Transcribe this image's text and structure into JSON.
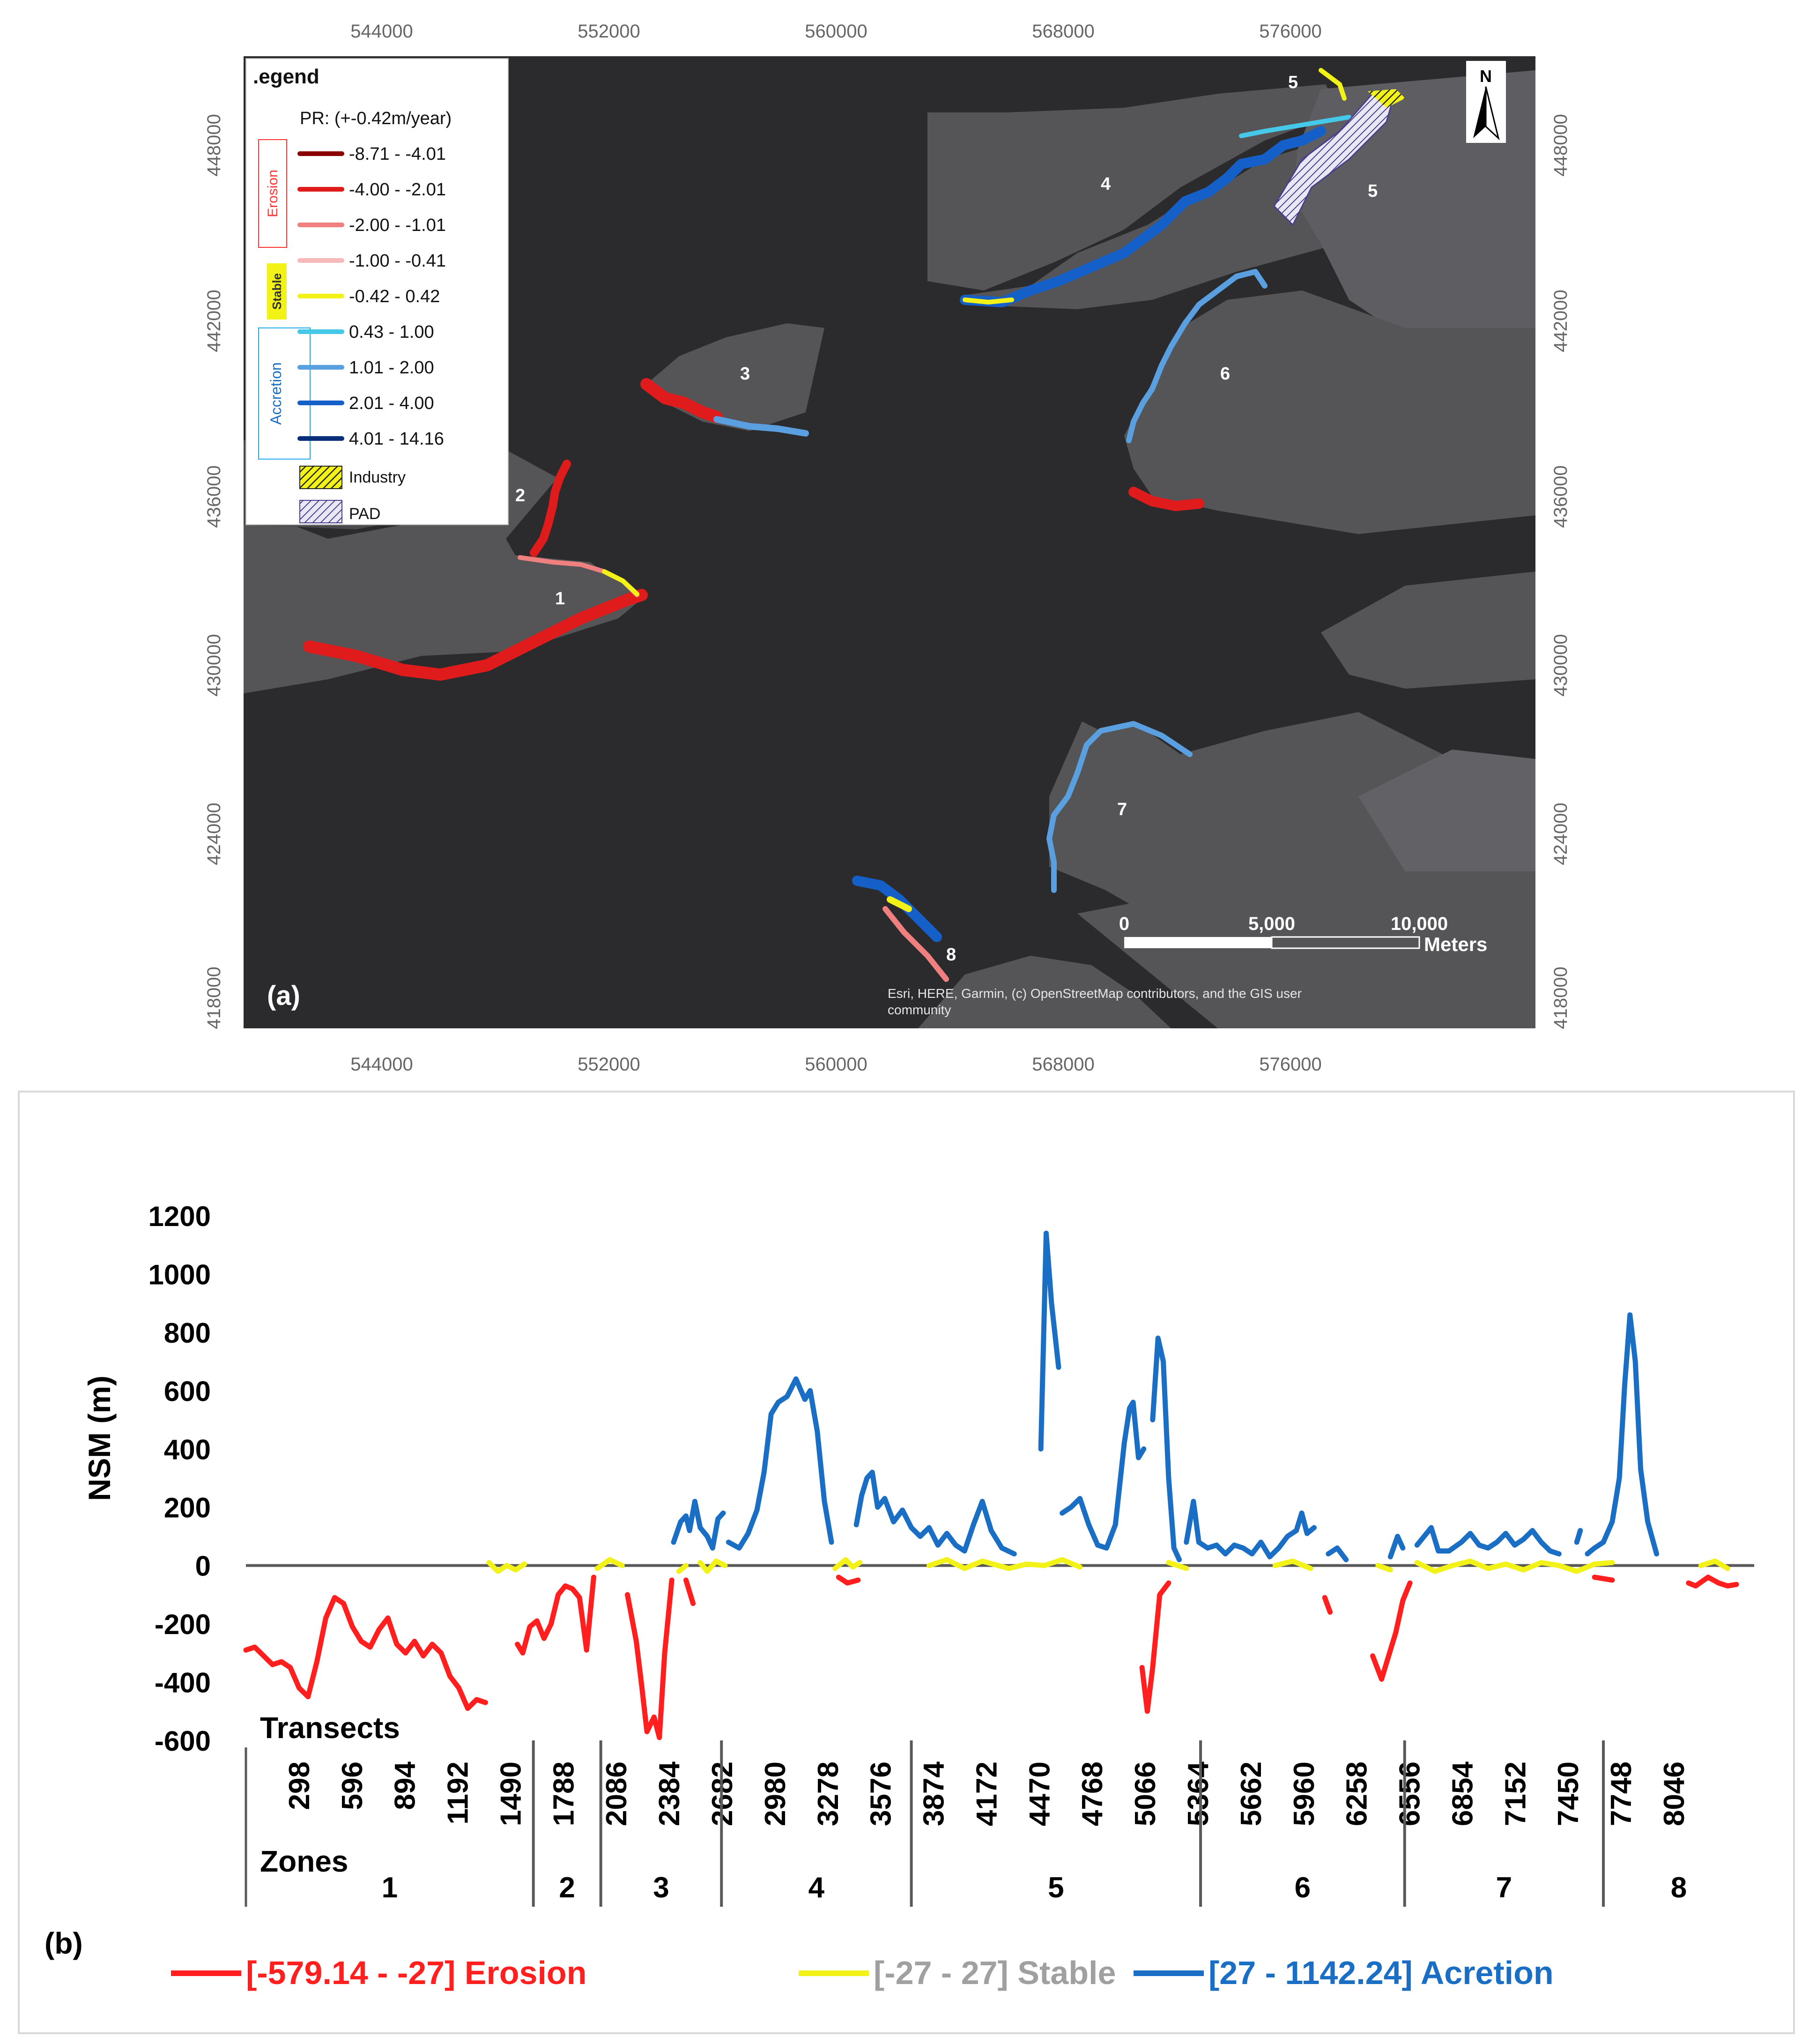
{
  "colors": {
    "erosion": "#ff1f1f",
    "stable": "#f2f218",
    "accretion": "#1a6fc4",
    "dark_red": "#8b0000",
    "water": "#2b2b2d",
    "land": "#555558",
    "stable_text": "#a0a0a0"
  },
  "map": {
    "panel_label": "(a)",
    "x_ticks": [
      "544000",
      "552000",
      "560000",
      "568000",
      "576000"
    ],
    "y_ticks": [
      "448000",
      "442000",
      "436000",
      "430000",
      "424000",
      "418000"
    ],
    "legend": {
      "title": ".egend",
      "subtitle": "PR: (+-0.42m/year)",
      "group_erosion": "Erosion",
      "group_stable": "Stable",
      "group_accretion": "Accretion",
      "classes": [
        {
          "label": "-8.71 - -4.01",
          "color": "#8b0000"
        },
        {
          "label": "-4.00 - -2.01",
          "color": "#e01b1b"
        },
        {
          "label": "-2.00 - -1.01",
          "color": "#f07f7f"
        },
        {
          "label": "-1.00 - -0.41",
          "color": "#f7b9b9"
        },
        {
          "label": "-0.42 - 0.42",
          "color": "#f2f218"
        },
        {
          "label": "0.43 - 1.00",
          "color": "#46c8e8"
        },
        {
          "label": "1.01 - 2.00",
          "color": "#5aa0e0"
        },
        {
          "label": "2.01 - 4.00",
          "color": "#1560c8"
        },
        {
          "label": "4.01 - 14.16",
          "color": "#0a2f7a"
        }
      ],
      "industry": "Industry",
      "pad": "PAD"
    },
    "zone_labels": [
      "1",
      "2",
      "3",
      "4",
      "5",
      "5",
      "6",
      "7",
      "8"
    ],
    "north": "N",
    "scale": {
      "zero": "0",
      "mid": "5,000",
      "max": "10,000",
      "unit": "Meters"
    },
    "credit_line1": "Esri, HERE, Garmin, (c) OpenStreetMap contributors, and the GIS user",
    "credit_line2": "community"
  },
  "chart_data": {
    "type": "line",
    "panel_label": "(b)",
    "ylabel": "NSM (m)",
    "xlabel_transects": "Transects",
    "xlabel_zones": "Zones",
    "ylim": [
      -600,
      1200
    ],
    "yticks": [
      1200,
      1000,
      800,
      600,
      400,
      200,
      0,
      -200,
      -400,
      -600
    ],
    "xlim": [
      0,
      8500
    ],
    "xticks": [
      298,
      596,
      894,
      1192,
      1490,
      1788,
      2086,
      2384,
      2682,
      2980,
      3278,
      3576,
      3874,
      4172,
      4470,
      4768,
      5066,
      5364,
      5662,
      5960,
      6258,
      6556,
      6854,
      7152,
      7450,
      7748,
      8046
    ],
    "zones": [
      {
        "name": "1",
        "start": 0,
        "end": 1620
      },
      {
        "name": "2",
        "start": 1620,
        "end": 2000
      },
      {
        "name": "3",
        "start": 2000,
        "end": 2680
      },
      {
        "name": "4",
        "start": 2680,
        "end": 3750
      },
      {
        "name": "5",
        "start": 3750,
        "end": 5380
      },
      {
        "name": "6",
        "start": 5380,
        "end": 6530
      },
      {
        "name": "7",
        "start": 6530,
        "end": 7650
      },
      {
        "name": "8",
        "start": 7650,
        "end": 8500
      }
    ],
    "legend": [
      {
        "label": "[-579.14 - -27] Erosion",
        "key": "erosion"
      },
      {
        "label": "[-27 - 27] Stable",
        "key": "stable"
      },
      {
        "label": "[27 - 1142.24] Acretion",
        "key": "accretion"
      }
    ],
    "series": [
      {
        "name": "Erosion",
        "key": "erosion",
        "points": [
          [
            0,
            -290
          ],
          [
            50,
            -280
          ],
          [
            100,
            -310
          ],
          [
            150,
            -340
          ],
          [
            200,
            -330
          ],
          [
            250,
            -350
          ],
          [
            300,
            -420
          ],
          [
            350,
            -450
          ],
          [
            400,
            -330
          ],
          [
            450,
            -180
          ],
          [
            500,
            -110
          ],
          [
            550,
            -130
          ],
          [
            600,
            -210
          ],
          [
            650,
            -260
          ],
          [
            700,
            -280
          ],
          [
            750,
            -220
          ],
          [
            800,
            -180
          ],
          [
            850,
            -270
          ],
          [
            900,
            -300
          ],
          [
            950,
            -260
          ],
          [
            1000,
            -310
          ],
          [
            1050,
            -270
          ],
          [
            1100,
            -300
          ],
          [
            1150,
            -380
          ],
          [
            1200,
            -420
          ],
          [
            1250,
            -490
          ],
          [
            1300,
            -460
          ],
          [
            1350,
            -470
          ],
          null,
          [
            1530,
            -270
          ],
          [
            1560,
            -300
          ],
          [
            1600,
            -210
          ],
          [
            1640,
            -190
          ],
          [
            1680,
            -250
          ],
          [
            1720,
            -200
          ],
          [
            1760,
            -100
          ],
          [
            1800,
            -70
          ],
          [
            1840,
            -80
          ],
          [
            1880,
            -110
          ],
          [
            1920,
            -290
          ],
          [
            1960,
            -40
          ],
          null,
          [
            2150,
            -100
          ],
          [
            2200,
            -260
          ],
          [
            2230,
            -410
          ],
          [
            2260,
            -570
          ],
          [
            2300,
            -520
          ],
          [
            2330,
            -590
          ],
          [
            2360,
            -300
          ],
          [
            2400,
            -50
          ],
          null,
          [
            2480,
            -50
          ],
          [
            2520,
            -130
          ],
          null,
          [
            3340,
            -40
          ],
          [
            3390,
            -60
          ],
          [
            3450,
            -50
          ],
          null,
          [
            5050,
            -350
          ],
          [
            5080,
            -500
          ],
          [
            5110,
            -350
          ],
          [
            5150,
            -100
          ],
          [
            5200,
            -60
          ],
          null,
          [
            6080,
            -110
          ],
          [
            6110,
            -160
          ],
          null,
          [
            6350,
            -310
          ],
          [
            6400,
            -390
          ],
          [
            6440,
            -310
          ],
          [
            6480,
            -230
          ],
          [
            6520,
            -120
          ],
          [
            6560,
            -60
          ],
          null,
          [
            7600,
            -40
          ],
          [
            7700,
            -50
          ],
          null,
          [
            8130,
            -60
          ],
          [
            8170,
            -70
          ],
          [
            8240,
            -40
          ],
          [
            8300,
            -60
          ],
          [
            8350,
            -70
          ],
          [
            8400,
            -65
          ]
        ]
      },
      {
        "name": "Stable",
        "key": "stable",
        "points": [
          [
            1370,
            10
          ],
          [
            1420,
            -20
          ],
          [
            1470,
            0
          ],
          [
            1520,
            -15
          ],
          [
            1570,
            5
          ],
          null,
          [
            1980,
            -10
          ],
          [
            2050,
            20
          ],
          [
            2120,
            0
          ],
          null,
          [
            2440,
            -20
          ],
          [
            2480,
            0
          ],
          null,
          [
            2560,
            10
          ],
          [
            2600,
            -20
          ],
          [
            2650,
            15
          ],
          [
            2700,
            0
          ],
          null,
          [
            3320,
            -10
          ],
          [
            3380,
            20
          ],
          [
            3420,
            -5
          ],
          [
            3460,
            10
          ],
          null,
          [
            3850,
            0
          ],
          [
            3950,
            20
          ],
          [
            4050,
            -10
          ],
          [
            4150,
            15
          ],
          [
            4300,
            -10
          ],
          [
            4400,
            5
          ],
          [
            4500,
            0
          ],
          [
            4600,
            20
          ],
          [
            4700,
            -5
          ],
          null,
          [
            5200,
            10
          ],
          [
            5300,
            -10
          ],
          null,
          [
            5800,
            0
          ],
          [
            5900,
            15
          ],
          [
            6000,
            -10
          ],
          null,
          [
            6380,
            0
          ],
          [
            6450,
            -15
          ],
          null,
          [
            6600,
            10
          ],
          [
            6700,
            -20
          ],
          [
            6800,
            0
          ],
          [
            6900,
            15
          ],
          [
            7000,
            -10
          ],
          [
            7100,
            5
          ],
          [
            7200,
            -15
          ],
          [
            7300,
            10
          ],
          [
            7400,
            0
          ],
          [
            7500,
            -20
          ],
          [
            7600,
            5
          ],
          [
            7700,
            10
          ],
          null,
          [
            8200,
            0
          ],
          [
            8280,
            15
          ],
          [
            8350,
            -10
          ]
        ]
      },
      {
        "name": "Accretion",
        "key": "accretion",
        "points": [
          [
            2410,
            80
          ],
          [
            2450,
            150
          ],
          [
            2480,
            170
          ],
          [
            2500,
            120
          ],
          [
            2530,
            220
          ],
          [
            2560,
            130
          ],
          [
            2600,
            100
          ],
          [
            2630,
            60
          ],
          [
            2660,
            160
          ],
          [
            2690,
            180
          ],
          null,
          [
            2720,
            80
          ],
          [
            2780,
            60
          ],
          [
            2830,
            110
          ],
          [
            2880,
            190
          ],
          [
            2920,
            320
          ],
          [
            2960,
            520
          ],
          [
            3000,
            560
          ],
          [
            3050,
            580
          ],
          [
            3100,
            640
          ],
          [
            3150,
            570
          ],
          [
            3180,
            600
          ],
          [
            3220,
            460
          ],
          [
            3260,
            220
          ],
          [
            3300,
            80
          ],
          null,
          [
            3440,
            140
          ],
          [
            3470,
            240
          ],
          [
            3500,
            300
          ],
          [
            3530,
            320
          ],
          [
            3560,
            200
          ],
          [
            3600,
            230
          ],
          [
            3650,
            150
          ],
          [
            3700,
            190
          ],
          [
            3750,
            130
          ],
          [
            3800,
            100
          ],
          [
            3850,
            130
          ],
          [
            3900,
            70
          ],
          [
            3950,
            110
          ],
          [
            4000,
            70
          ],
          [
            4050,
            50
          ],
          [
            4100,
            140
          ],
          [
            4150,
            220
          ],
          [
            4200,
            120
          ],
          [
            4260,
            60
          ],
          [
            4330,
            40
          ],
          null,
          [
            4480,
            400
          ],
          [
            4510,
            1140
          ],
          [
            4540,
            900
          ],
          [
            4580,
            680
          ],
          null,
          [
            4600,
            180
          ],
          [
            4650,
            200
          ],
          [
            4700,
            230
          ],
          [
            4750,
            140
          ],
          [
            4800,
            70
          ],
          [
            4850,
            60
          ],
          [
            4900,
            140
          ],
          [
            4950,
            420
          ],
          [
            4980,
            540
          ],
          [
            5000,
            560
          ],
          [
            5030,
            370
          ],
          [
            5060,
            400
          ],
          null,
          [
            5110,
            500
          ],
          [
            5140,
            780
          ],
          [
            5170,
            700
          ],
          [
            5200,
            300
          ],
          [
            5230,
            60
          ],
          [
            5260,
            20
          ],
          null,
          [
            5300,
            80
          ],
          [
            5340,
            220
          ],
          [
            5370,
            80
          ],
          [
            5420,
            60
          ],
          [
            5470,
            70
          ],
          [
            5520,
            40
          ],
          [
            5570,
            70
          ],
          [
            5620,
            60
          ],
          [
            5670,
            40
          ],
          [
            5720,
            80
          ],
          [
            5770,
            30
          ],
          [
            5820,
            60
          ],
          [
            5870,
            100
          ],
          [
            5920,
            120
          ],
          [
            5950,
            180
          ],
          [
            5980,
            110
          ],
          [
            6020,
            130
          ],
          null,
          [
            6100,
            40
          ],
          [
            6150,
            60
          ],
          [
            6200,
            20
          ],
          null,
          [
            6450,
            30
          ],
          [
            6490,
            100
          ],
          [
            6520,
            60
          ],
          null,
          [
            6600,
            70
          ],
          [
            6680,
            130
          ],
          [
            6720,
            50
          ],
          [
            6780,
            50
          ],
          [
            6850,
            80
          ],
          [
            6900,
            110
          ],
          [
            6950,
            70
          ],
          [
            7000,
            60
          ],
          [
            7050,
            80
          ],
          [
            7100,
            110
          ],
          [
            7150,
            70
          ],
          [
            7200,
            90
          ],
          [
            7250,
            120
          ],
          [
            7300,
            80
          ],
          [
            7350,
            50
          ],
          [
            7400,
            40
          ],
          null,
          [
            7500,
            80
          ],
          [
            7520,
            120
          ],
          null,
          [
            7560,
            40
          ],
          [
            7600,
            60
          ],
          [
            7650,
            80
          ],
          [
            7700,
            150
          ],
          [
            7740,
            300
          ],
          [
            7770,
            620
          ],
          [
            7800,
            860
          ],
          [
            7830,
            700
          ],
          [
            7860,
            330
          ],
          [
            7900,
            150
          ],
          [
            7950,
            40
          ]
        ]
      }
    ]
  }
}
